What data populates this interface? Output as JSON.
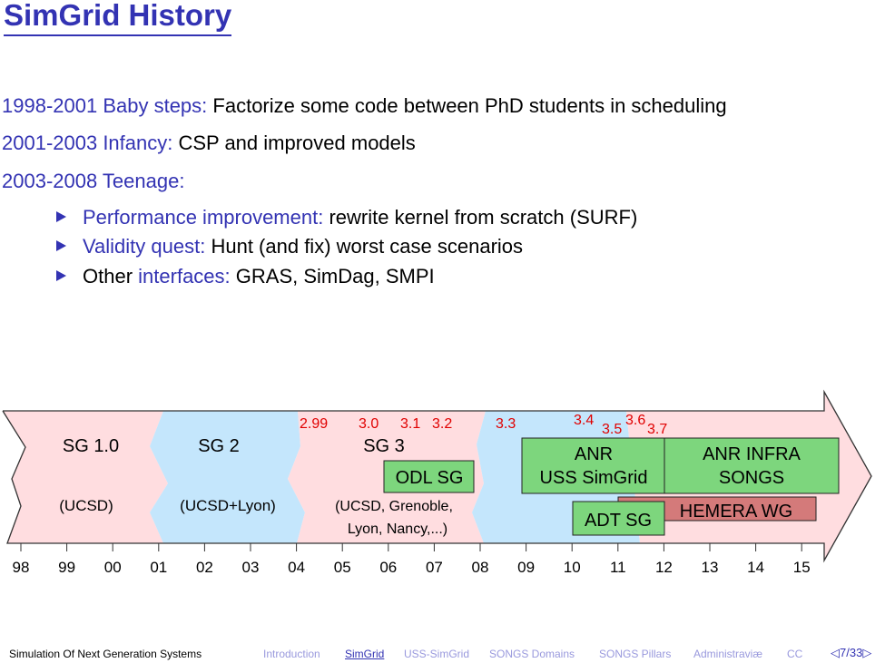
{
  "title": "SimGrid History",
  "history": [
    {
      "period": "1998-2001 Baby steps:",
      "text": "Factorize some code between PhD students in scheduling"
    },
    {
      "period": "2001-2003 Infancy:",
      "text": "CSP and improved models"
    },
    {
      "period": "2003-2008 Teenage:",
      "text": ""
    }
  ],
  "bullets": [
    {
      "key": "Performance improvement:",
      "text": "rewrite kernel from scratch (SURF)"
    },
    {
      "key": "Validity quest:",
      "text": "Hunt (and fix) worst case scenarios"
    },
    {
      "pre": "Other",
      "key": "interfaces:",
      "text": "GRAS, SimDag, SMPI"
    }
  ],
  "timeline": {
    "years": [
      "98",
      "99",
      "00",
      "01",
      "02",
      "03",
      "04",
      "05",
      "06",
      "07",
      "08",
      "09",
      "10",
      "11",
      "12",
      "13",
      "14",
      "15"
    ],
    "eras": [
      {
        "name": "SG 1.0",
        "who": "(UCSD)",
        "who2": ""
      },
      {
        "name": "SG 2",
        "who": "(UCSD+Lyon)",
        "who2": ""
      },
      {
        "name": "SG 3",
        "who": "(UCSD, Grenoble,",
        "who2": "Lyon, Nancy,...)"
      }
    ],
    "versions": [
      "2.99",
      "3.0",
      "3.1",
      "3.2",
      "3.3",
      "3.4",
      "3.5",
      "3.6",
      "3.7"
    ],
    "projects": {
      "odl": "ODL SG",
      "anr_uss_1": "ANR",
      "anr_uss_2": "USS SimGrid",
      "anr_infra_1": "ANR INFRA",
      "anr_infra_2": "SONGS",
      "hemera": "HEMERA WG",
      "adt": "ADT SG"
    },
    "colors": {
      "pink": "#ffdde0",
      "blue": "#c4e6fc",
      "green": "#7dd67d",
      "hemera": "#d47a7a",
      "version": "#e00000"
    }
  },
  "footer": {
    "left": "Simulation Of Next Generation Systems",
    "nav": [
      "Introduction",
      "SimGrid",
      "USS-SimGrid",
      "SONGS Domains",
      "SONGS Pillars",
      "Administraviæ",
      "CC"
    ],
    "current": "SimGrid",
    "page": "7/33"
  }
}
